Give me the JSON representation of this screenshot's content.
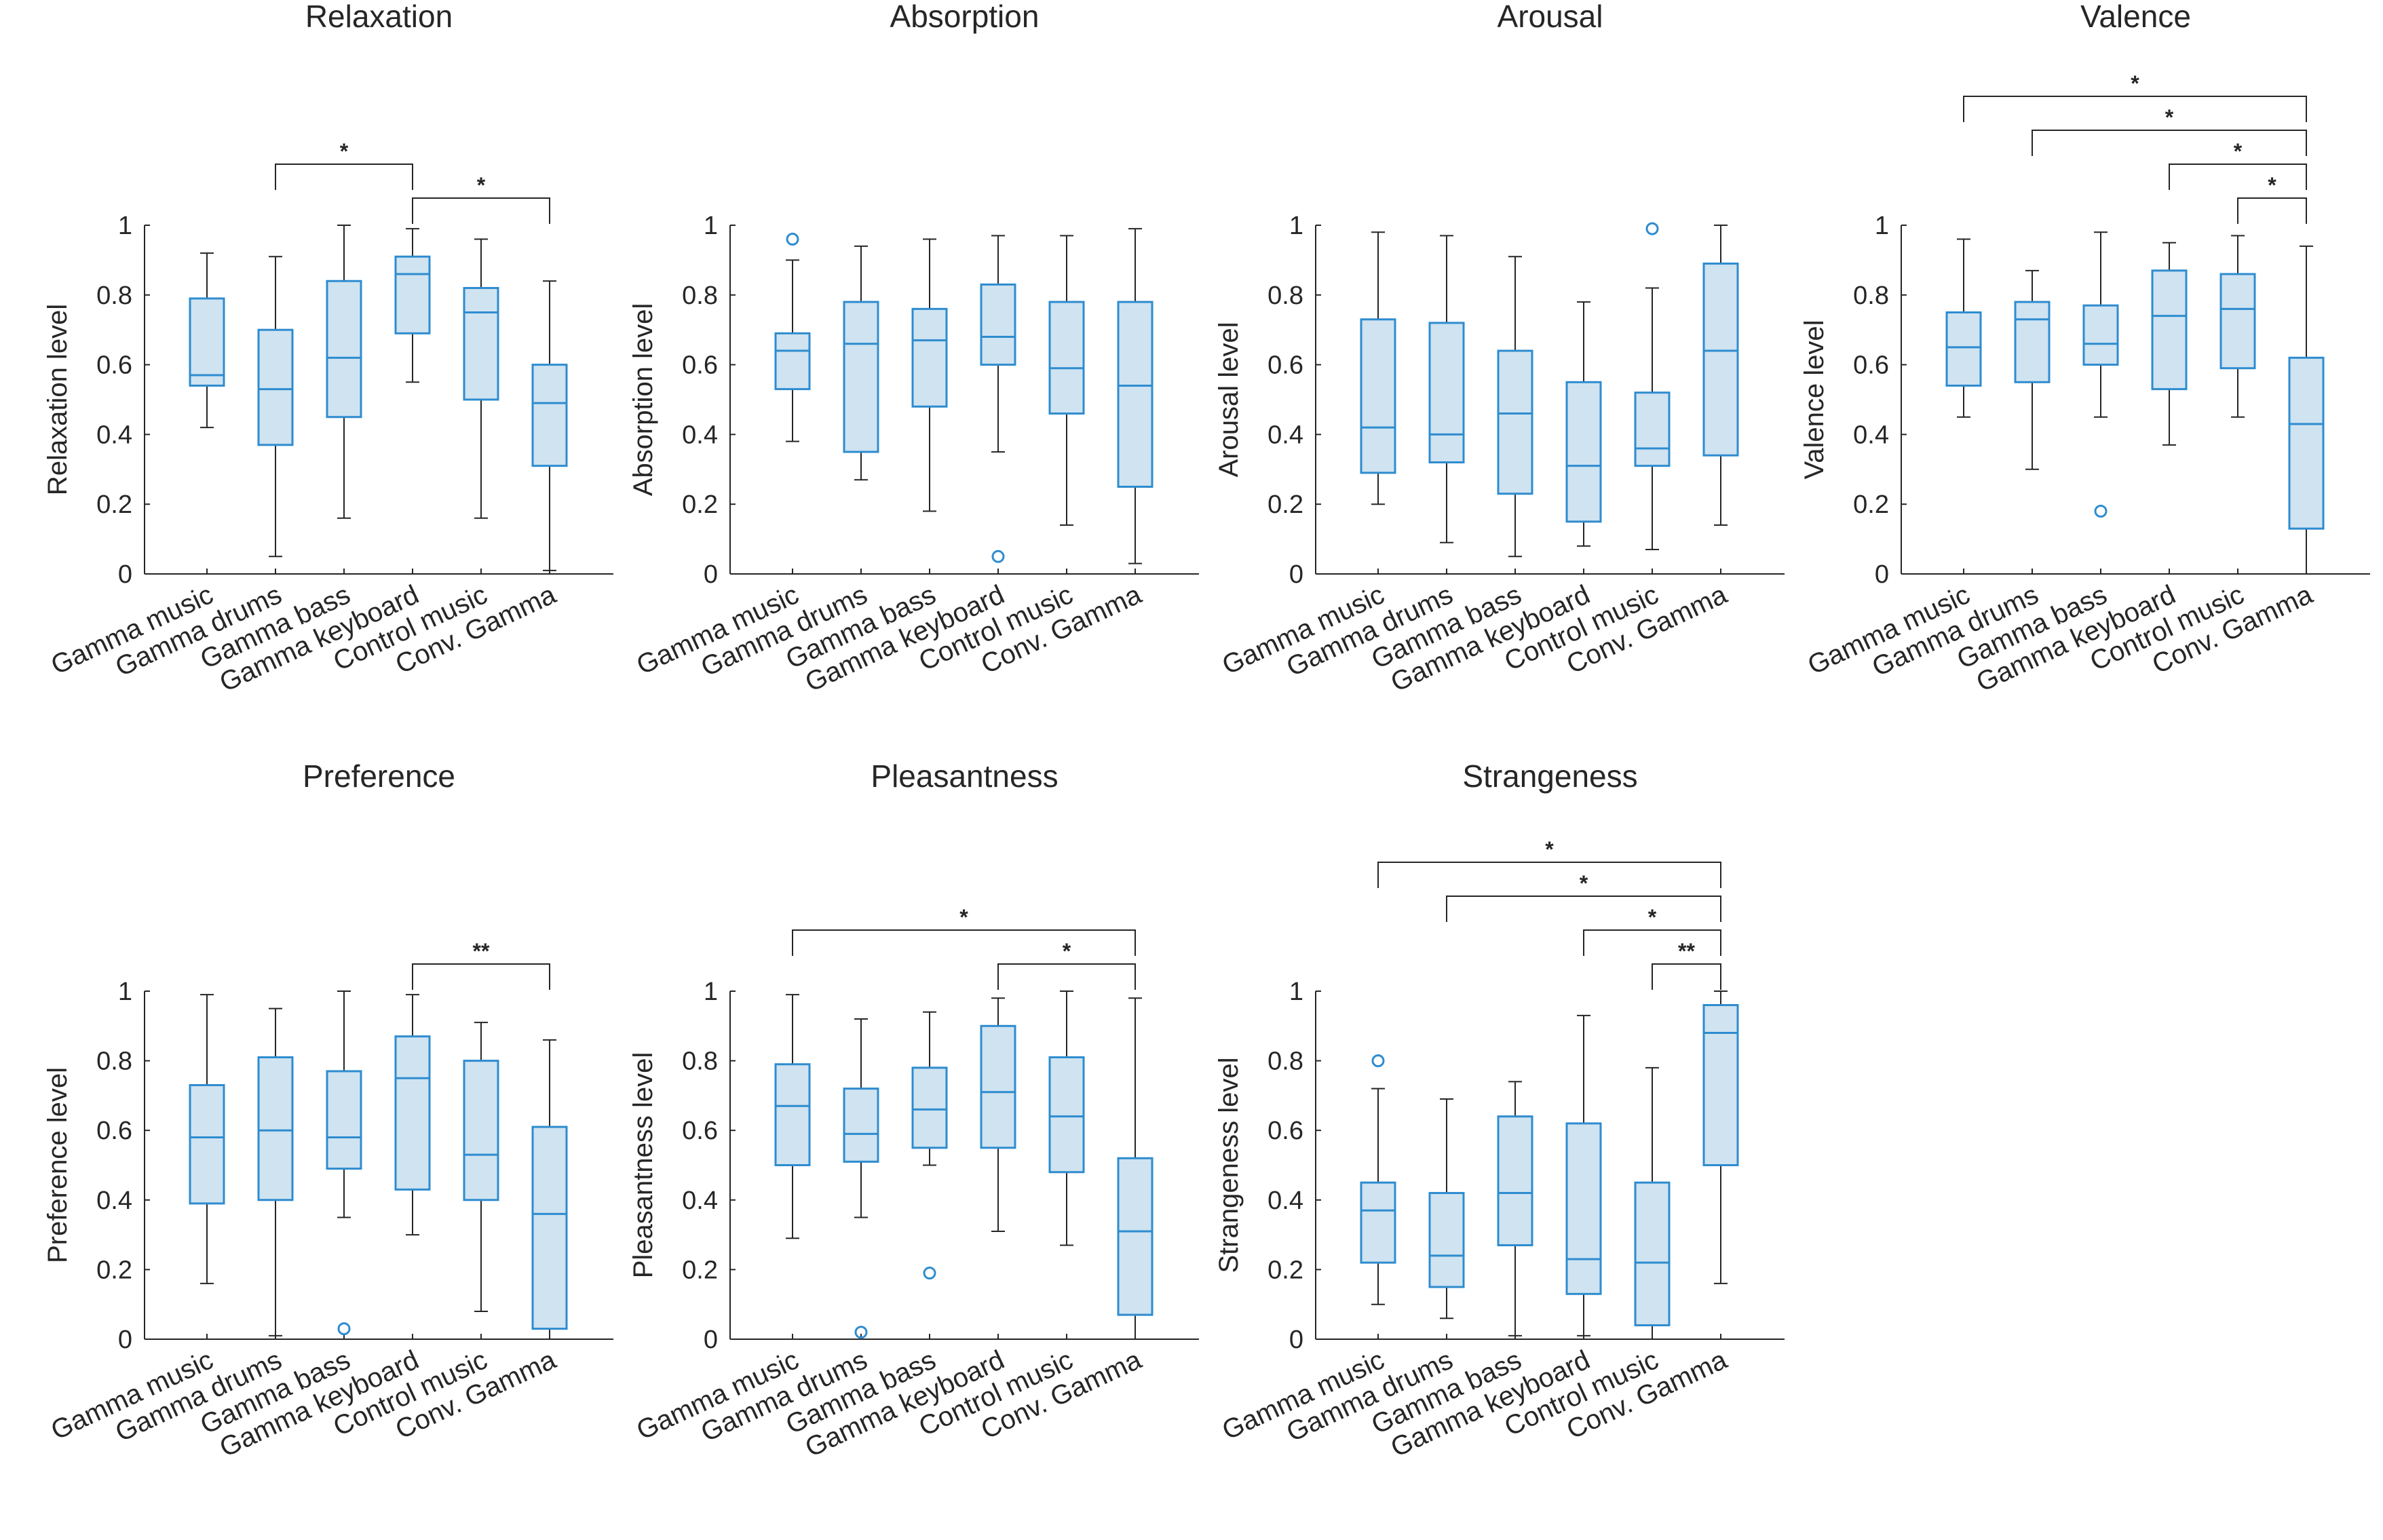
{
  "figure": {
    "categories": [
      "Gamma music",
      "Gamma drums",
      "Gamma bass",
      "Gamma keyboard",
      "Control music",
      "Conv. Gamma"
    ],
    "colors": {
      "box_edge": "#2e8ccf",
      "box_fill": "#cfe3f1",
      "whisker": "#262626",
      "axis": "#262626",
      "bracket": "#262626"
    }
  },
  "chart_data": [
    {
      "type": "boxplot",
      "title": "Relaxation",
      "ylabel": "Relaxation level",
      "ylim": [
        0,
        1
      ],
      "yticks": [
        "0",
        "0.2",
        "0.4",
        "0.6",
        "0.8",
        "1"
      ],
      "categories": [
        "Gamma music",
        "Gamma drums",
        "Gamma bass",
        "Gamma keyboard",
        "Control music",
        "Conv. Gamma"
      ],
      "boxes": [
        {
          "min": 0.42,
          "q1": 0.54,
          "median": 0.57,
          "q3": 0.79,
          "max": 0.92,
          "outliers": []
        },
        {
          "min": 0.05,
          "q1": 0.37,
          "median": 0.53,
          "q3": 0.7,
          "max": 0.91,
          "outliers": []
        },
        {
          "min": 0.16,
          "q1": 0.45,
          "median": 0.62,
          "q3": 0.84,
          "max": 1.0,
          "outliers": []
        },
        {
          "min": 0.55,
          "q1": 0.69,
          "median": 0.86,
          "q3": 0.91,
          "max": 0.99,
          "outliers": []
        },
        {
          "min": 0.16,
          "q1": 0.5,
          "median": 0.75,
          "q3": 0.82,
          "max": 0.96,
          "outliers": []
        },
        {
          "min": 0.01,
          "q1": 0.31,
          "median": 0.49,
          "q3": 0.6,
          "max": 0.84,
          "outliers": []
        }
      ],
      "significance": [
        {
          "from": 1,
          "to": 3,
          "label": "*"
        },
        {
          "from": 3,
          "to": 5,
          "label": "*"
        }
      ]
    },
    {
      "type": "boxplot",
      "title": "Absorption",
      "ylabel": "Absorption level",
      "ylim": [
        0,
        1
      ],
      "yticks": [
        "0",
        "0.2",
        "0.4",
        "0.6",
        "0.8",
        "1"
      ],
      "categories": [
        "Gamma music",
        "Gamma drums",
        "Gamma bass",
        "Gamma keyboard",
        "Control music",
        "Conv. Gamma"
      ],
      "boxes": [
        {
          "min": 0.38,
          "q1": 0.53,
          "median": 0.64,
          "q3": 0.69,
          "max": 0.9,
          "outliers": [
            0.96
          ]
        },
        {
          "min": 0.27,
          "q1": 0.35,
          "median": 0.66,
          "q3": 0.78,
          "max": 0.94,
          "outliers": []
        },
        {
          "min": 0.18,
          "q1": 0.48,
          "median": 0.67,
          "q3": 0.76,
          "max": 0.96,
          "outliers": []
        },
        {
          "min": 0.35,
          "q1": 0.6,
          "median": 0.68,
          "q3": 0.83,
          "max": 0.97,
          "outliers": [
            0.05
          ]
        },
        {
          "min": 0.14,
          "q1": 0.46,
          "median": 0.59,
          "q3": 0.78,
          "max": 0.97,
          "outliers": []
        },
        {
          "min": 0.03,
          "q1": 0.25,
          "median": 0.54,
          "q3": 0.78,
          "max": 0.99,
          "outliers": []
        }
      ],
      "significance": []
    },
    {
      "type": "boxplot",
      "title": "Arousal",
      "ylabel": "Arousal level",
      "ylim": [
        0,
        1
      ],
      "yticks": [
        "0",
        "0.2",
        "0.4",
        "0.6",
        "0.8",
        "1"
      ],
      "categories": [
        "Gamma music",
        "Gamma drums",
        "Gamma bass",
        "Gamma keyboard",
        "Control music",
        "Conv. Gamma"
      ],
      "boxes": [
        {
          "min": 0.2,
          "q1": 0.29,
          "median": 0.42,
          "q3": 0.73,
          "max": 0.98,
          "outliers": []
        },
        {
          "min": 0.09,
          "q1": 0.32,
          "median": 0.4,
          "q3": 0.72,
          "max": 0.97,
          "outliers": []
        },
        {
          "min": 0.05,
          "q1": 0.23,
          "median": 0.46,
          "q3": 0.64,
          "max": 0.91,
          "outliers": []
        },
        {
          "min": 0.08,
          "q1": 0.15,
          "median": 0.31,
          "q3": 0.55,
          "max": 0.78,
          "outliers": []
        },
        {
          "min": 0.07,
          "q1": 0.31,
          "median": 0.36,
          "q3": 0.52,
          "max": 0.82,
          "outliers": [
            0.99
          ]
        },
        {
          "min": 0.14,
          "q1": 0.34,
          "median": 0.64,
          "q3": 0.89,
          "max": 1.0,
          "outliers": []
        }
      ],
      "significance": []
    },
    {
      "type": "boxplot",
      "title": "Valence",
      "ylabel": "Valence level",
      "ylim": [
        0,
        1
      ],
      "yticks": [
        "0",
        "0.2",
        "0.4",
        "0.6",
        "0.8",
        "1"
      ],
      "categories": [
        "Gamma music",
        "Gamma drums",
        "Gamma bass",
        "Gamma keyboard",
        "Control music",
        "Conv. Gamma"
      ],
      "boxes": [
        {
          "min": 0.45,
          "q1": 0.54,
          "median": 0.65,
          "q3": 0.75,
          "max": 0.96,
          "outliers": []
        },
        {
          "min": 0.3,
          "q1": 0.55,
          "median": 0.73,
          "q3": 0.78,
          "max": 0.87,
          "outliers": []
        },
        {
          "min": 0.45,
          "q1": 0.6,
          "median": 0.66,
          "q3": 0.77,
          "max": 0.98,
          "outliers": [
            0.18
          ]
        },
        {
          "min": 0.37,
          "q1": 0.53,
          "median": 0.74,
          "q3": 0.87,
          "max": 0.95,
          "outliers": []
        },
        {
          "min": 0.45,
          "q1": 0.59,
          "median": 0.76,
          "q3": 0.86,
          "max": 0.97,
          "outliers": []
        },
        {
          "min": 0.0,
          "q1": 0.13,
          "median": 0.43,
          "q3": 0.62,
          "max": 0.94,
          "outliers": []
        }
      ],
      "significance": [
        {
          "from": 0,
          "to": 5,
          "label": "*"
        },
        {
          "from": 1,
          "to": 5,
          "label": "*"
        },
        {
          "from": 3,
          "to": 5,
          "label": "*"
        },
        {
          "from": 4,
          "to": 5,
          "label": "*"
        }
      ]
    },
    {
      "type": "boxplot",
      "title": "Preference",
      "ylabel": "Preference level",
      "ylim": [
        0,
        1
      ],
      "yticks": [
        "0",
        "0.2",
        "0.4",
        "0.6",
        "0.8",
        "1"
      ],
      "categories": [
        "Gamma music",
        "Gamma drums",
        "Gamma bass",
        "Gamma keyboard",
        "Control music",
        "Conv. Gamma"
      ],
      "boxes": [
        {
          "min": 0.16,
          "q1": 0.39,
          "median": 0.58,
          "q3": 0.73,
          "max": 0.99,
          "outliers": []
        },
        {
          "min": 0.01,
          "q1": 0.4,
          "median": 0.6,
          "q3": 0.81,
          "max": 0.95,
          "outliers": []
        },
        {
          "min": 0.35,
          "q1": 0.49,
          "median": 0.58,
          "q3": 0.77,
          "max": 1.0,
          "outliers": [
            0.03
          ]
        },
        {
          "min": 0.3,
          "q1": 0.43,
          "median": 0.75,
          "q3": 0.87,
          "max": 0.99,
          "outliers": []
        },
        {
          "min": 0.08,
          "q1": 0.4,
          "median": 0.53,
          "q3": 0.8,
          "max": 0.91,
          "outliers": []
        },
        {
          "min": 0.0,
          "q1": 0.03,
          "median": 0.36,
          "q3": 0.61,
          "max": 0.86,
          "outliers": []
        }
      ],
      "significance": [
        {
          "from": 3,
          "to": 5,
          "label": "**"
        }
      ]
    },
    {
      "type": "boxplot",
      "title": "Pleasantness",
      "ylabel": "Pleasantness level",
      "ylim": [
        0,
        1
      ],
      "yticks": [
        "0",
        "0.2",
        "0.4",
        "0.6",
        "0.8",
        "1"
      ],
      "categories": [
        "Gamma music",
        "Gamma drums",
        "Gamma bass",
        "Gamma keyboard",
        "Control music",
        "Conv. Gamma"
      ],
      "boxes": [
        {
          "min": 0.29,
          "q1": 0.5,
          "median": 0.67,
          "q3": 0.79,
          "max": 0.99,
          "outliers": []
        },
        {
          "min": 0.35,
          "q1": 0.51,
          "median": 0.59,
          "q3": 0.72,
          "max": 0.92,
          "outliers": [
            0.02
          ]
        },
        {
          "min": 0.5,
          "q1": 0.55,
          "median": 0.66,
          "q3": 0.78,
          "max": 0.94,
          "outliers": [
            0.19
          ]
        },
        {
          "min": 0.31,
          "q1": 0.55,
          "median": 0.71,
          "q3": 0.9,
          "max": 0.98,
          "outliers": []
        },
        {
          "min": 0.27,
          "q1": 0.48,
          "median": 0.64,
          "q3": 0.81,
          "max": 1.0,
          "outliers": []
        },
        {
          "min": 0.0,
          "q1": 0.07,
          "median": 0.31,
          "q3": 0.52,
          "max": 0.98,
          "outliers": []
        }
      ],
      "significance": [
        {
          "from": 0,
          "to": 5,
          "label": "*"
        },
        {
          "from": 3,
          "to": 5,
          "label": "*"
        }
      ]
    },
    {
      "type": "boxplot",
      "title": "Strangeness",
      "ylabel": "Strangeness level",
      "ylim": [
        0,
        1
      ],
      "yticks": [
        "0",
        "0.2",
        "0.4",
        "0.6",
        "0.8",
        "1"
      ],
      "categories": [
        "Gamma music",
        "Gamma drums",
        "Gamma bass",
        "Gamma keyboard",
        "Control music",
        "Conv. Gamma"
      ],
      "boxes": [
        {
          "min": 0.1,
          "q1": 0.22,
          "median": 0.37,
          "q3": 0.45,
          "max": 0.72,
          "outliers": [
            0.8
          ]
        },
        {
          "min": 0.06,
          "q1": 0.15,
          "median": 0.24,
          "q3": 0.42,
          "max": 0.69,
          "outliers": []
        },
        {
          "min": 0.01,
          "q1": 0.27,
          "median": 0.42,
          "q3": 0.64,
          "max": 0.74,
          "outliers": []
        },
        {
          "min": 0.01,
          "q1": 0.13,
          "median": 0.23,
          "q3": 0.62,
          "max": 0.93,
          "outliers": []
        },
        {
          "min": 0.0,
          "q1": 0.04,
          "median": 0.22,
          "q3": 0.45,
          "max": 0.78,
          "outliers": []
        },
        {
          "min": 0.16,
          "q1": 0.5,
          "median": 0.88,
          "q3": 0.96,
          "max": 1.0,
          "outliers": []
        }
      ],
      "significance": [
        {
          "from": 0,
          "to": 5,
          "label": "*"
        },
        {
          "from": 1,
          "to": 5,
          "label": "*"
        },
        {
          "from": 3,
          "to": 5,
          "label": "*"
        },
        {
          "from": 4,
          "to": 5,
          "label": "**"
        }
      ]
    }
  ]
}
